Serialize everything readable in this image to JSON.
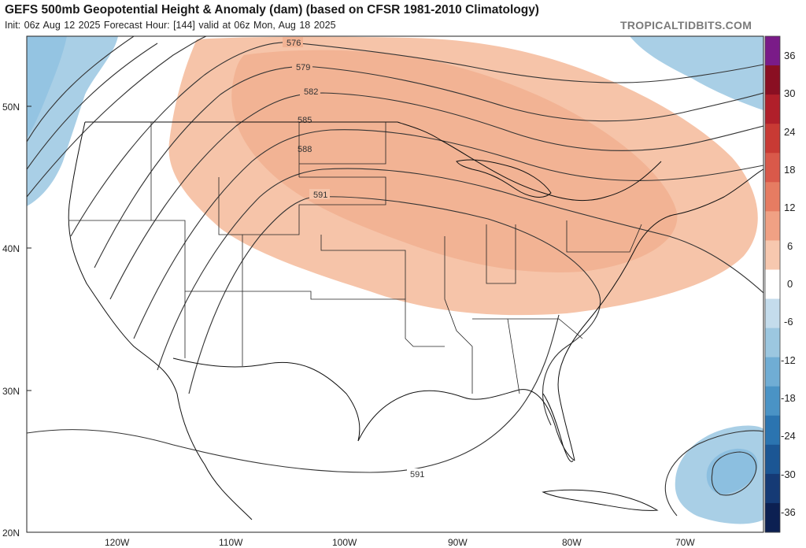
{
  "header": {
    "title": "GEFS 500mb Geopotential Height & Anomaly (dam) (based on CFSR 1981-2010 Climatology)",
    "subtitle": "Init: 06z Aug 12 2025   Forecast Hour: [144]   valid at 06z Mon, Aug 18 2025",
    "brand": "TROPICALTIDBITS.COM"
  },
  "axes": {
    "lat_labels": [
      "50N",
      "40N",
      "30N",
      "20N"
    ],
    "lon_labels": [
      "120W",
      "110W",
      "100W",
      "90W",
      "80W",
      "70W"
    ]
  },
  "contours": {
    "labels": [
      "576",
      "579",
      "582",
      "585",
      "588",
      "591",
      "591"
    ]
  },
  "colorbar": {
    "labels": [
      "36",
      "30",
      "24",
      "18",
      "12",
      "6",
      "0",
      "-6",
      "-12",
      "-18",
      "-24",
      "-30",
      "-36"
    ],
    "colors": [
      "#7a1b88",
      "#8a0f22",
      "#b01f2a",
      "#c83a34",
      "#d9594a",
      "#e67c62",
      "#f0a184",
      "#f7c8af",
      "#ffffff",
      "#c4dcec",
      "#9cc7e0",
      "#70add4",
      "#4a93c5",
      "#2b74b0",
      "#1b5694",
      "#153a75",
      "#0c2052"
    ]
  },
  "colors": {
    "warm_anomaly": "#f6c4a9",
    "warm_anomaly_core": "#f2b394",
    "cool_anomaly": "#a9cfe6",
    "cool_anomaly_core": "#8cbfe0",
    "contour": "#333333",
    "coast": "#111111"
  }
}
